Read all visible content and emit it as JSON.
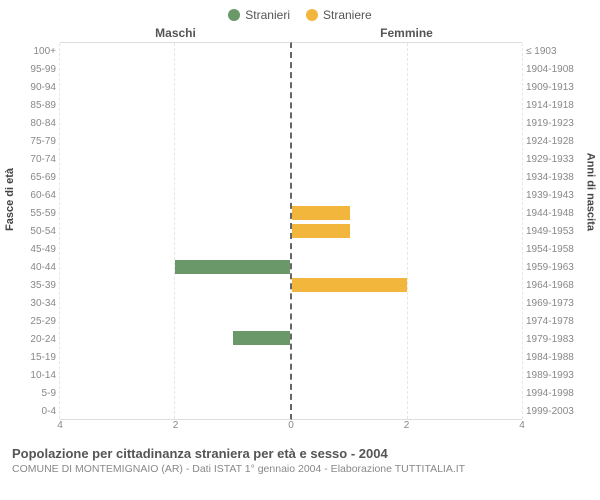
{
  "chart": {
    "type": "population-pyramid",
    "colors": {
      "male": "#6b9868",
      "female": "#f2b63c",
      "grid": "#e6e6e6",
      "axis_dash": "#666666",
      "text": "#555555",
      "muted": "#888888"
    },
    "legend": [
      {
        "label": "Stranieri",
        "color": "#6b9868"
      },
      {
        "label": "Straniere",
        "color": "#f2b63c"
      }
    ],
    "side_titles": {
      "left": "Maschi",
      "right": "Femmine"
    },
    "y_left_title": "Fasce di età",
    "y_right_title": "Anni di nascita",
    "x_max": 4,
    "x_ticks": [
      4,
      2,
      0,
      2,
      4
    ],
    "age_labels": [
      "100+",
      "95-99",
      "90-94",
      "85-89",
      "80-84",
      "75-79",
      "70-74",
      "65-69",
      "60-64",
      "55-59",
      "50-54",
      "45-49",
      "40-44",
      "35-39",
      "30-34",
      "25-29",
      "20-24",
      "15-19",
      "10-14",
      "5-9",
      "0-4"
    ],
    "year_labels": [
      "≤ 1903",
      "1904-1908",
      "1909-1913",
      "1914-1918",
      "1919-1923",
      "1924-1928",
      "1929-1933",
      "1934-1938",
      "1939-1943",
      "1944-1948",
      "1949-1953",
      "1954-1958",
      "1959-1963",
      "1964-1968",
      "1969-1973",
      "1974-1978",
      "1979-1983",
      "1984-1988",
      "1989-1993",
      "1994-1998",
      "1999-2003"
    ],
    "male": [
      0,
      0,
      0,
      0,
      0,
      0,
      0,
      0,
      0,
      0,
      0,
      0,
      2,
      0,
      0,
      0,
      1,
      0,
      0,
      0,
      0
    ],
    "female": [
      0,
      0,
      0,
      0,
      0,
      0,
      0,
      0,
      0,
      1,
      1,
      0,
      0,
      2,
      0,
      0,
      0,
      0,
      0,
      0,
      0
    ],
    "title": "Popolazione per cittadinanza straniera per età e sesso - 2004",
    "subtitle": "COMUNE DI MONTEMIGNAIO (AR) - Dati ISTAT 1° gennaio 2004 - Elaborazione TUTTITALIA.IT"
  }
}
